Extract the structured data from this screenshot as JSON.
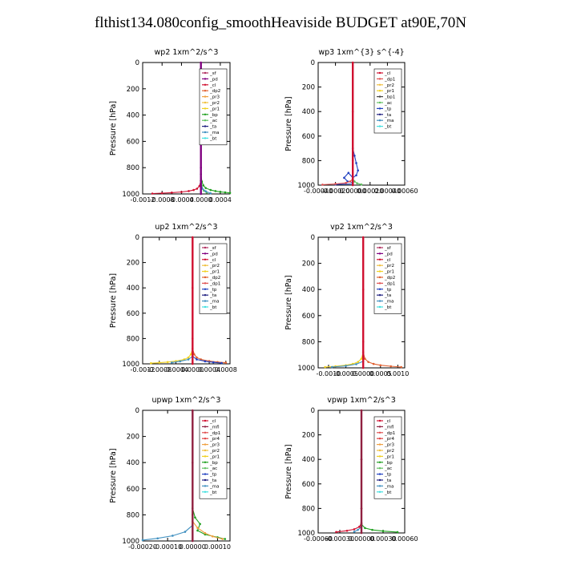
{
  "title": "flthist134.080config_smoothHeaviside  BUDGET at90E,70N",
  "colors": {
    "sf": "#b03060",
    "pd": "#800080",
    "cl": "#d01030",
    "dp2": "#e06030",
    "pr3": "#f0a040",
    "pr2": "#f0c040",
    "pr1": "#f0d020",
    "bp": "#20a020",
    "ac": "#60c060",
    "ta": "#202080",
    "ma": "#4090c0",
    "bt": "#40e0e0",
    "dp1": "#e05050",
    "tp": "#2040c0",
    "mfl": "#902040",
    "pr4": "#e04040"
  },
  "chart_data": [
    {
      "type": "line",
      "title": "wp2   1xm^2/s^3",
      "ylabel": "Pressure [hPa]",
      "xlabel": "",
      "xlim": [
        -0.0012,
        0.0006
      ],
      "ylim": [
        0,
        1000
      ],
      "yinvert": true,
      "xticks": [
        -0.0012,
        -0.0008,
        -0.0004,
        0.0,
        0.0004
      ],
      "xticklabels": [
        "-0.0012",
        "-0.0008",
        "-0.0004",
        "0.0000",
        "0.0004"
      ],
      "yticks": [
        0,
        200,
        400,
        600,
        800,
        1000
      ],
      "legend": [
        "_sf",
        "_pd",
        "_cl",
        "_dp2",
        "_pr3",
        "_pr2",
        "_pr1",
        "_bp",
        "_ac",
        "_ta",
        "_ma",
        "_bt"
      ],
      "legend_position": "top-right",
      "series": [
        {
          "name": "_cl",
          "x": [
            0.0,
            -3e-05,
            -8e-05,
            -0.00015,
            -0.00025,
            -0.0004,
            -0.0006,
            -0.0008,
            -0.001
          ],
          "y": [
            900,
            940,
            960,
            970,
            978,
            985,
            990,
            994,
            997
          ]
        },
        {
          "name": "_bp",
          "x": [
            0.0,
            2e-05,
            5e-05,
            0.0001,
            0.0002,
            0.0003,
            0.0004,
            0.0005,
            0.0006
          ],
          "y": [
            850,
            905,
            935,
            955,
            970,
            978,
            984,
            988,
            992
          ]
        },
        {
          "name": "_ac",
          "x": [
            0.0,
            2e-05,
            6e-05,
            0.00012
          ],
          "y": [
            900,
            950,
            975,
            990
          ]
        },
        {
          "name": "_ma",
          "x": [
            0.0,
            3e-05,
            0.0001,
            0.0002
          ],
          "y": [
            920,
            960,
            980,
            995
          ]
        },
        {
          "name": "_pd",
          "x": [
            0.0,
            0.0,
            0.0,
            0.0
          ],
          "y": [
            0,
            400,
            800,
            1000
          ]
        }
      ]
    },
    {
      "type": "line",
      "title": "wp3   1xm^{3} s^{-4}",
      "ylabel": "Pressure [hPa]",
      "xlabel": "",
      "xlim": [
        -0.0004,
        0.0006
      ],
      "ylim": [
        0,
        1000
      ],
      "yinvert": true,
      "xticks": [
        -0.0004,
        -0.0002,
        0.0,
        0.0002,
        0.0004,
        0.0006
      ],
      "xticklabels": [
        "-0.00040",
        "-0.00020",
        "0.00000",
        "0.00020",
        "0.00040",
        "0.00060"
      ],
      "yticks": [
        0,
        200,
        400,
        600,
        800,
        1000
      ],
      "legend": [
        "_cl",
        "_dp1",
        "_pr2",
        "_pr1",
        "_bp1",
        "_ac",
        "_tp",
        "_ta",
        "_ma",
        "_bt"
      ],
      "legend_position": "top-right",
      "series": [
        {
          "name": "_tp",
          "x": [
            0.0,
            2e-05,
            4e-05,
            6e-05,
            4e-05,
            0.0,
            -5e-05,
            -0.0001,
            -6e-05,
            0.0,
            0.0,
            -0.0002
          ],
          "y": [
            700,
            760,
            820,
            880,
            920,
            940,
            900,
            940,
            970,
            980,
            990,
            995
          ]
        },
        {
          "name": "_dp1",
          "x": [
            0.0,
            -3e-05,
            -8e-05,
            -0.0002,
            -0.00035
          ],
          "y": [
            950,
            970,
            982,
            990,
            996
          ]
        },
        {
          "name": "_ac",
          "x": [
            0.0,
            2e-05,
            5e-05,
            0.0001
          ],
          "y": [
            950,
            970,
            985,
            995
          ]
        },
        {
          "name": "_cl",
          "x": [
            0.0,
            0.0,
            0.0,
            0.0
          ],
          "y": [
            0,
            400,
            800,
            1000
          ]
        }
      ]
    },
    {
      "type": "line",
      "title": "up2   1xm^2/s^3",
      "ylabel": "Pressure [hPa]",
      "xlabel": "",
      "xlim": [
        -0.0012,
        0.0009
      ],
      "ylim": [
        0,
        1000
      ],
      "yinvert": true,
      "xticks": [
        -0.0012,
        -0.0008,
        -0.0004,
        0.0,
        0.0004,
        0.0008
      ],
      "xticklabels": [
        "-0.0012",
        "-0.0008",
        "-0.0004",
        "0.0000",
        "0.0004",
        "0.0008"
      ],
      "yticks": [
        0,
        200,
        400,
        600,
        800,
        1000
      ],
      "legend": [
        "_sf",
        "_pd",
        "_cl",
        "_pr2",
        "_pr1",
        "_dp2",
        "_dp1",
        "_tp",
        "_ta",
        "_ma",
        "_bt"
      ],
      "legend_position": "top-right",
      "series": [
        {
          "name": "_pr1",
          "x": [
            0.0,
            -4e-05,
            -0.0001,
            -0.0002,
            -0.0004,
            -0.0006,
            -0.0008,
            -0.001
          ],
          "y": [
            880,
            925,
            950,
            965,
            978,
            986,
            991,
            995
          ]
        },
        {
          "name": "_dp2",
          "x": [
            0.0,
            4e-05,
            0.0001,
            0.0002,
            0.0004,
            0.0006,
            0.0008
          ],
          "y": [
            880,
            925,
            950,
            965,
            978,
            986,
            991
          ]
        },
        {
          "name": "_tp",
          "x": [
            0.0,
            0.0001,
            0.0003,
            0.0005,
            0.0007
          ],
          "y": [
            940,
            965,
            980,
            988,
            994
          ]
        },
        {
          "name": "_ma",
          "x": [
            0.0,
            -0.0001,
            -0.0003,
            -0.0005
          ],
          "y": [
            940,
            965,
            980,
            990
          ]
        },
        {
          "name": "_cl",
          "x": [
            0.0,
            0.0,
            0.0,
            0.0
          ],
          "y": [
            0,
            400,
            800,
            1000
          ]
        }
      ]
    },
    {
      "type": "line",
      "title": "vp2   1xm^2/s^3",
      "ylabel": "Pressure [hPa]",
      "xlabel": "",
      "xlim": [
        -0.0013,
        0.0012
      ],
      "ylim": [
        0,
        1000
      ],
      "yinvert": true,
      "xticks": [
        -0.001,
        -0.0005,
        0.0,
        0.0005,
        0.001
      ],
      "xticklabels": [
        "-0.0010",
        "-0.0005",
        "0.0000",
        "0.0005",
        "0.0010"
      ],
      "yticks": [
        0,
        200,
        400,
        600,
        800,
        1000
      ],
      "legend": [
        "_sf",
        "_pd",
        "_cl",
        "_pr2",
        "_pr1",
        "_dp2",
        "_dp1",
        "_tp",
        "_ta",
        "_ma",
        "_bt"
      ],
      "legend_position": "top-right",
      "series": [
        {
          "name": "_pr1",
          "x": [
            0.0,
            -5e-05,
            -0.00015,
            -0.0003,
            -0.0005,
            -0.0008,
            -0.0011
          ],
          "y": [
            880,
            930,
            955,
            970,
            980,
            988,
            994
          ]
        },
        {
          "name": "_dp2",
          "x": [
            0.0,
            5e-05,
            0.00015,
            0.0003,
            0.0005,
            0.0008,
            0.0011
          ],
          "y": [
            880,
            930,
            955,
            970,
            980,
            988,
            994
          ]
        },
        {
          "name": "_ma",
          "x": [
            0.0,
            -0.0002,
            -0.0005,
            -0.0009
          ],
          "y": [
            950,
            972,
            985,
            994
          ]
        },
        {
          "name": "_cl",
          "x": [
            0.0,
            0.0,
            0.0,
            0.0
          ],
          "y": [
            0,
            400,
            800,
            1000
          ]
        }
      ]
    },
    {
      "type": "line",
      "title": "upwp   1xm^2/s^3",
      "ylabel": "Pressure [hPa]",
      "xlabel": "",
      "xlim": [
        -0.0002,
        0.00015
      ],
      "ylim": [
        0,
        1000
      ],
      "yinvert": true,
      "xticks": [
        -0.0002,
        -0.0001,
        0.0,
        0.0001
      ],
      "xticklabels": [
        "-0.00020",
        "-0.00010",
        "0.00000",
        "0.00010"
      ],
      "yticks": [
        0,
        200,
        400,
        600,
        800,
        1000
      ],
      "legend": [
        "_cl",
        "_mfl",
        "_dp1",
        "_pr4",
        "_pr3",
        "_pr2",
        "_pr1",
        "_bp",
        "_ac",
        "_tp",
        "_ta",
        "_ma",
        "_bt"
      ],
      "legend_position": "top-right",
      "series": [
        {
          "name": "_bp",
          "x": [
            0.0,
            1e-05,
            3e-05,
            2e-05,
            5e-05,
            0.0001,
            0.00013
          ],
          "y": [
            750,
            820,
            870,
            920,
            950,
            972,
            985
          ]
        },
        {
          "name": "_pr3",
          "x": [
            0.0,
            2e-05,
            5e-05,
            8e-05,
            0.00012
          ],
          "y": [
            850,
            900,
            940,
            965,
            985
          ]
        },
        {
          "name": "_ma",
          "x": [
            0.0,
            -3e-05,
            -8e-05,
            -0.00014,
            -0.0002
          ],
          "y": [
            880,
            930,
            960,
            980,
            993
          ]
        },
        {
          "name": "_mfl",
          "x": [
            0.0,
            0.0,
            0.0,
            0.0
          ],
          "y": [
            0,
            400,
            800,
            1000
          ]
        }
      ]
    },
    {
      "type": "line",
      "title": "vpwp   1xm^2/s^3",
      "ylabel": "Pressure [hPa]",
      "xlabel": "",
      "xlim": [
        -0.0006,
        0.0006
      ],
      "ylim": [
        0,
        1000
      ],
      "yinvert": true,
      "xticks": [
        -0.0006,
        -0.0003,
        0.0,
        0.0003,
        0.0006
      ],
      "xticklabels": [
        "-0.00060",
        "-0.00030",
        "0.00000",
        "0.00030",
        "0.00060"
      ],
      "yticks": [
        0,
        200,
        400,
        600,
        800,
        1000
      ],
      "legend": [
        "_cl",
        "_mfl",
        "_dp1",
        "_pr4",
        "_pr3",
        "_pr2",
        "_pr1",
        "_bp",
        "_ac",
        "_tp",
        "_ta",
        "_ma",
        "_bt"
      ],
      "legend_position": "top-right",
      "series": [
        {
          "name": "_cl",
          "x": [
            0.0,
            -3e-05,
            -0.0001,
            -0.0002,
            -0.00035
          ],
          "y": [
            920,
            950,
            970,
            982,
            992
          ]
        },
        {
          "name": "_bp",
          "x": [
            0.0,
            5e-05,
            0.00015,
            0.0003,
            0.0005
          ],
          "y": [
            930,
            960,
            975,
            985,
            993
          ]
        },
        {
          "name": "_ma",
          "x": [
            0.0,
            -5e-05,
            -0.0001
          ],
          "y": [
            950,
            975,
            990
          ]
        },
        {
          "name": "_mfl",
          "x": [
            0.0,
            0.0,
            0.0,
            0.0
          ],
          "y": [
            0,
            400,
            800,
            1000
          ]
        }
      ]
    }
  ]
}
